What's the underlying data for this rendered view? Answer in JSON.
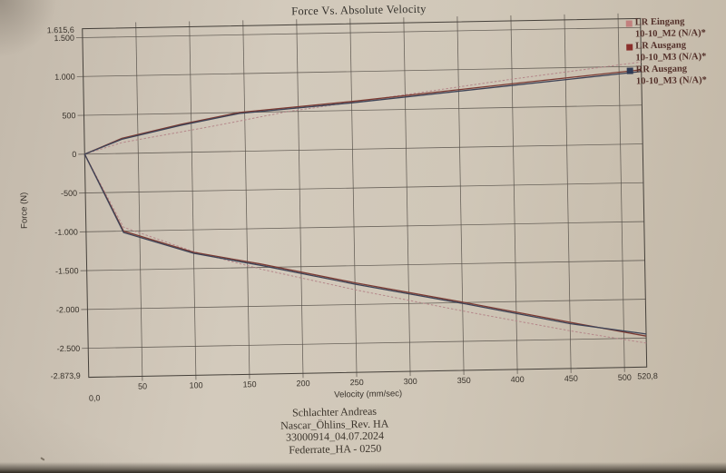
{
  "title": "Force Vs. Absolute Velocity",
  "colors": {
    "paper": "#d0c7b8",
    "grid": "#57514a",
    "border": "#45403a",
    "tick_text": "#39332c",
    "axis_title_text": "#39332c",
    "title_text": "#33302b",
    "legend_text": "#53302a",
    "footer_text": "#3c352c"
  },
  "legend": {
    "items": [
      {
        "name": "LR Eingang",
        "sub": "10-10_M2 (N/A)*",
        "color": "#c2807e"
      },
      {
        "name": "LR Ausgang",
        "sub": "10-10_M3 (N/A)*",
        "color": "#8b2f2b"
      },
      {
        "name": "RR Ausgang",
        "sub": "10-10_M3 (N/A)*",
        "color": "#2f3a55"
      }
    ]
  },
  "footer": {
    "lines": [
      "Schlachter Andreas",
      "Nascar_Öhlins_Rev. HA",
      "33000914_04.07.2024",
      "Federrate_HA - 0250"
    ]
  },
  "chart_data": {
    "type": "line",
    "title": "Force Vs. Absolute Velocity",
    "xlabel": "Velocity (mm/sec)",
    "ylabel": "Force (N)",
    "xlim": [
      0,
      520.8
    ],
    "ylim": [
      -2873.9,
      1615.6
    ],
    "grid": true,
    "legend_position": "top-right",
    "x_edge_labels": {
      "min": "0,0",
      "max": "520,8"
    },
    "y_edge_labels": {
      "max": "1.615,6",
      "min": "-2.873,9"
    },
    "xticks": [
      {
        "v": 50,
        "label": "50"
      },
      {
        "v": 100,
        "label": "100"
      },
      {
        "v": 150,
        "label": "150"
      },
      {
        "v": 200,
        "label": "200"
      },
      {
        "v": 250,
        "label": "250"
      },
      {
        "v": 300,
        "label": "300"
      },
      {
        "v": 350,
        "label": "350"
      },
      {
        "v": 400,
        "label": "400"
      },
      {
        "v": 450,
        "label": "450"
      },
      {
        "v": 500,
        "label": "500"
      }
    ],
    "yticks": [
      {
        "v": 1500,
        "label": "1.500"
      },
      {
        "v": 1000,
        "label": "1.000"
      },
      {
        "v": 500,
        "label": "500"
      },
      {
        "v": 0,
        "label": "0"
      },
      {
        "v": -500,
        "label": "-500"
      },
      {
        "v": -1000,
        "label": "-1.000"
      },
      {
        "v": -1500,
        "label": "-1.500"
      },
      {
        "v": -2000,
        "label": "-2.000"
      },
      {
        "v": -2500,
        "label": "-2.500"
      }
    ],
    "series": [
      {
        "name": "LR Eingang 10-10_M2 (N/A)*",
        "color": "#b5878a",
        "style": "dashed",
        "width": 1,
        "branches": {
          "upper": [
            [
              0,
              0
            ],
            [
              35,
              140
            ],
            [
              120,
              330
            ],
            [
              190,
              500
            ],
            [
              300,
              690
            ],
            [
              400,
              865
            ],
            [
              520.8,
              1055
            ]
          ],
          "lower": [
            [
              0,
              0
            ],
            [
              35,
              -950
            ],
            [
              100,
              -1280
            ],
            [
              162,
              -1520
            ],
            [
              250,
              -1810
            ],
            [
              354,
              -2120
            ],
            [
              450,
              -2390
            ],
            [
              520.8,
              -2565
            ]
          ]
        }
      },
      {
        "name": "LR Ausgang 10-10_M3 (N/A)*",
        "color": "#7b3b33",
        "style": "solid",
        "width": 1.3,
        "branches": {
          "upper": [
            [
              0,
              0
            ],
            [
              35,
              195
            ],
            [
              90,
              360
            ],
            [
              145,
              500
            ],
            [
              250,
              615
            ],
            [
              400,
              805
            ],
            [
              520.8,
              955
            ]
          ],
          "lower": [
            [
              0,
              0
            ],
            [
              35,
              -1000
            ],
            [
              100,
              -1290
            ],
            [
              162,
              -1455
            ],
            [
              250,
              -1720
            ],
            [
              354,
              -2005
            ],
            [
              450,
              -2280
            ],
            [
              520.8,
              -2475
            ]
          ]
        }
      },
      {
        "name": "RR Ausgang 10-10_M3 (N/A)*",
        "color": "#3d4357",
        "style": "solid",
        "width": 1.3,
        "branches": {
          "upper": [
            [
              0,
              0
            ],
            [
              35,
              183
            ],
            [
              90,
              348
            ],
            [
              145,
              487
            ],
            [
              250,
              597
            ],
            [
              400,
              784
            ],
            [
              520.8,
              933
            ]
          ],
          "lower": [
            [
              0,
              0
            ],
            [
              35,
              -1018
            ],
            [
              100,
              -1303
            ],
            [
              162,
              -1472
            ],
            [
              250,
              -1737
            ],
            [
              354,
              -2022
            ],
            [
              450,
              -2297
            ],
            [
              520.8,
              -2448
            ]
          ]
        }
      }
    ]
  }
}
